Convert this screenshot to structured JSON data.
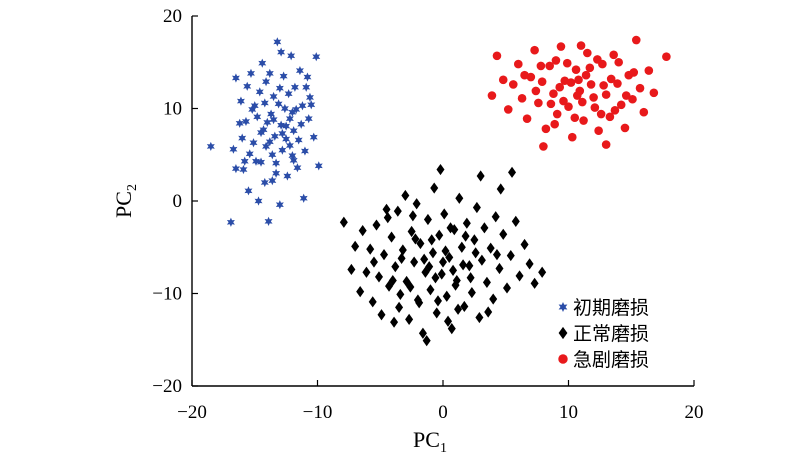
{
  "chart_data": {
    "type": "scatter",
    "title": "",
    "xlabel": "PC",
    "xlabel_subscript": "1",
    "ylabel": "PC",
    "ylabel_subscript": "2",
    "xlim": [
      -20,
      20
    ],
    "ylim": [
      -20,
      20
    ],
    "xticks": [
      -20,
      -10,
      0,
      10,
      20
    ],
    "yticks": [
      -20,
      -10,
      0,
      10,
      20
    ],
    "xtick_labels": [
      "−20",
      "−10",
      "0",
      "10",
      "20"
    ],
    "ytick_labels": [
      "−20",
      "−10",
      "0",
      "10",
      "20"
    ],
    "grid": false,
    "legend_position": "bottom-right",
    "series": [
      {
        "name": "初期磨损",
        "marker": "star",
        "color": "#2b4da8",
        "points": [
          [
            -18.5,
            5.9
          ],
          [
            -16.9,
            -2.3
          ],
          [
            -16.7,
            5.6
          ],
          [
            -16.5,
            13.3
          ],
          [
            -16.5,
            3.5
          ],
          [
            -16.2,
            8.4
          ],
          [
            -16.1,
            10.8
          ],
          [
            -16.0,
            6.8
          ],
          [
            -15.9,
            3.4
          ],
          [
            -15.8,
            4.3
          ],
          [
            -15.7,
            8.6
          ],
          [
            -15.5,
            1.1
          ],
          [
            -15.3,
            13.8
          ],
          [
            -15.2,
            9.9
          ],
          [
            -15.1,
            6.3
          ],
          [
            -15.0,
            10.3
          ],
          [
            -14.9,
            4.3
          ],
          [
            -14.7,
            0.0
          ],
          [
            -14.6,
            11.8
          ],
          [
            -14.5,
            4.2
          ],
          [
            -14.4,
            14.9
          ],
          [
            -14.3,
            7.7
          ],
          [
            -14.2,
            2.0
          ],
          [
            -14.1,
            12.9
          ],
          [
            -14.0,
            8.5
          ],
          [
            -13.9,
            -2.2
          ],
          [
            -13.8,
            6.4
          ],
          [
            -13.7,
            9.4
          ],
          [
            -13.6,
            2.2
          ],
          [
            -13.5,
            11.3
          ],
          [
            -13.4,
            7.0
          ],
          [
            -13.3,
            4.1
          ],
          [
            -13.2,
            17.2
          ],
          [
            -13.1,
            10.5
          ],
          [
            -13.0,
            -0.4
          ],
          [
            -12.9,
            8.2
          ],
          [
            -12.8,
            5.5
          ],
          [
            -12.7,
            13.5
          ],
          [
            -12.6,
            10.0
          ],
          [
            -12.5,
            6.7
          ],
          [
            -12.4,
            2.7
          ],
          [
            -12.3,
            11.6
          ],
          [
            -12.2,
            8.9
          ],
          [
            -12.1,
            15.7
          ],
          [
            -12.0,
            4.9
          ],
          [
            -11.9,
            7.6
          ],
          [
            -11.8,
            12.3
          ],
          [
            -11.7,
            9.9
          ],
          [
            -11.6,
            3.6
          ],
          [
            -11.5,
            6.6
          ],
          [
            -11.4,
            14.1
          ],
          [
            -11.3,
            8.3
          ],
          [
            -11.2,
            10.3
          ],
          [
            -11.1,
            0.3
          ],
          [
            -11.0,
            5.4
          ],
          [
            -10.9,
            12.3
          ],
          [
            -10.7,
            8.9
          ],
          [
            -10.5,
            10.4
          ],
          [
            -10.3,
            6.9
          ],
          [
            -10.1,
            15.6
          ],
          [
            -10.8,
            13.4
          ],
          [
            -9.9,
            3.8
          ],
          [
            -10.6,
            11.2
          ],
          [
            -15.4,
            5.1
          ],
          [
            -14.8,
            9.1
          ],
          [
            -14.2,
            10.6
          ],
          [
            -13.6,
            5.0
          ],
          [
            -13.0,
            12.2
          ],
          [
            -12.5,
            8.1
          ],
          [
            -12.0,
            9.6
          ],
          [
            -14.5,
            7.4
          ],
          [
            -13.8,
            13.8
          ],
          [
            -13.3,
            3.0
          ],
          [
            -12.8,
            7.3
          ],
          [
            -11.9,
            4.4
          ],
          [
            -15.6,
            12.4
          ],
          [
            -13.5,
            8.8
          ],
          [
            -12.9,
            16.1
          ],
          [
            -14.1,
            5.9
          ],
          [
            -12.2,
            6.0
          ]
        ]
      },
      {
        "name": "正常磨损",
        "marker": "diamond",
        "color": "#000000",
        "points": [
          [
            -7.9,
            -2.3
          ],
          [
            -7.3,
            -7.4
          ],
          [
            -7.0,
            -4.9
          ],
          [
            -6.6,
            -9.8
          ],
          [
            -6.4,
            -3.2
          ],
          [
            -6.1,
            -7.7
          ],
          [
            -5.8,
            -5.2
          ],
          [
            -5.6,
            -10.9
          ],
          [
            -5.3,
            -2.6
          ],
          [
            -5.1,
            -8.2
          ],
          [
            -4.9,
            -12.3
          ],
          [
            -4.7,
            -5.8
          ],
          [
            -4.5,
            -0.9
          ],
          [
            -4.3,
            -9.2
          ],
          [
            -4.1,
            -3.9
          ],
          [
            -3.9,
            -13.1
          ],
          [
            -3.8,
            -7.1
          ],
          [
            -3.6,
            -1.1
          ],
          [
            -3.4,
            -10.1
          ],
          [
            -3.2,
            -5.3
          ],
          [
            -3.0,
            0.6
          ],
          [
            -2.9,
            -8.7
          ],
          [
            -2.7,
            -12.8
          ],
          [
            -2.5,
            -3.3
          ],
          [
            -2.3,
            -6.6
          ],
          [
            -2.1,
            -0.3
          ],
          [
            -2.0,
            -10.7
          ],
          [
            -1.8,
            -4.6
          ],
          [
            -1.6,
            -14.3
          ],
          [
            -1.4,
            -7.7
          ],
          [
            -1.2,
            -2.0
          ],
          [
            -1.0,
            -9.6
          ],
          [
            -0.8,
            -5.6
          ],
          [
            -0.7,
            1.4
          ],
          [
            -0.5,
            -12.1
          ],
          [
            -0.3,
            -3.7
          ],
          [
            -0.1,
            -7.9
          ],
          [
            0.1,
            -1.4
          ],
          [
            0.3,
            -10.3
          ],
          [
            0.5,
            -6.1
          ],
          [
            0.7,
            -13.8
          ],
          [
            0.9,
            -3.1
          ],
          [
            1.1,
            -8.6
          ],
          [
            1.3,
            0.3
          ],
          [
            1.5,
            -5.0
          ],
          [
            1.7,
            -11.4
          ],
          [
            1.9,
            -2.4
          ],
          [
            2.1,
            -7.0
          ],
          [
            2.3,
            -9.9
          ],
          [
            2.5,
            -4.2
          ],
          [
            2.7,
            -0.7
          ],
          [
            2.9,
            -12.6
          ],
          [
            3.1,
            -6.4
          ],
          [
            3.3,
            -2.9
          ],
          [
            3.5,
            -8.8
          ],
          [
            3.8,
            -5.1
          ],
          [
            4.0,
            -10.6
          ],
          [
            4.2,
            -1.7
          ],
          [
            4.5,
            -7.3
          ],
          [
            4.8,
            -3.6
          ],
          [
            5.1,
            -9.4
          ],
          [
            5.4,
            -5.9
          ],
          [
            5.8,
            -2.2
          ],
          [
            6.1,
            -8.1
          ],
          [
            6.5,
            -4.7
          ],
          [
            6.9,
            -6.8
          ],
          [
            7.3,
            -8.9
          ],
          [
            7.9,
            -7.7
          ],
          [
            -1.3,
            -15.1
          ],
          [
            0.4,
            -13.0
          ],
          [
            -0.2,
            3.4
          ],
          [
            3.0,
            2.7
          ],
          [
            4.6,
            1.3
          ],
          [
            5.5,
            3.1
          ],
          [
            -2.2,
            -4.1
          ],
          [
            -1.5,
            -6.3
          ],
          [
            -0.6,
            -8.3
          ],
          [
            0.2,
            -5.4
          ],
          [
            1.0,
            -9.1
          ],
          [
            1.6,
            -6.9
          ],
          [
            -2.6,
            -9.3
          ],
          [
            -1.9,
            -11.0
          ],
          [
            -0.9,
            -4.2
          ],
          [
            0.6,
            -2.9
          ],
          [
            1.2,
            -11.7
          ],
          [
            2.2,
            -8.3
          ],
          [
            -3.3,
            -6.2
          ],
          [
            -4.0,
            -8.6
          ],
          [
            -0.4,
            -10.8
          ],
          [
            2.6,
            -5.6
          ],
          [
            -1.1,
            -7.1
          ],
          [
            0.0,
            -6.6
          ],
          [
            0.8,
            -7.5
          ],
          [
            -2.4,
            -1.6
          ],
          [
            1.8,
            -3.8
          ],
          [
            -3.5,
            -11.5
          ],
          [
            -5.5,
            -6.6
          ],
          [
            3.6,
            -12.0
          ],
          [
            4.3,
            -5.8
          ],
          [
            -4.4,
            -1.8
          ]
        ]
      },
      {
        "name": "急剧磨损",
        "marker": "circle",
        "color": "#e8191b",
        "points": [
          [
            3.9,
            11.4
          ],
          [
            4.3,
            15.7
          ],
          [
            4.8,
            13.1
          ],
          [
            5.2,
            9.9
          ],
          [
            5.6,
            12.6
          ],
          [
            6.0,
            14.8
          ],
          [
            6.3,
            11.1
          ],
          [
            6.7,
            8.9
          ],
          [
            7.0,
            13.4
          ],
          [
            7.3,
            16.3
          ],
          [
            7.6,
            10.6
          ],
          [
            7.9,
            12.9
          ],
          [
            8.2,
            7.8
          ],
          [
            8.5,
            14.6
          ],
          [
            8.8,
            11.6
          ],
          [
            9.1,
            9.4
          ],
          [
            9.4,
            16.7
          ],
          [
            9.7,
            13.0
          ],
          [
            10.0,
            10.2
          ],
          [
            10.3,
            6.9
          ],
          [
            10.6,
            14.2
          ],
          [
            10.9,
            11.9
          ],
          [
            11.2,
            8.7
          ],
          [
            11.5,
            16.0
          ],
          [
            11.8,
            12.6
          ],
          [
            12.1,
            10.1
          ],
          [
            12.4,
            7.6
          ],
          [
            12.7,
            14.8
          ],
          [
            13.0,
            11.5
          ],
          [
            13.3,
            9.1
          ],
          [
            13.6,
            15.8
          ],
          [
            13.9,
            12.7
          ],
          [
            14.2,
            10.4
          ],
          [
            14.5,
            7.9
          ],
          [
            14.8,
            13.6
          ],
          [
            15.1,
            11.0
          ],
          [
            15.4,
            17.4
          ],
          [
            15.7,
            12.2
          ],
          [
            16.0,
            9.6
          ],
          [
            16.4,
            14.1
          ],
          [
            16.8,
            11.7
          ],
          [
            17.8,
            15.6
          ],
          [
            8.0,
            5.9
          ],
          [
            13.0,
            6.1
          ],
          [
            9.3,
            12.3
          ],
          [
            10.8,
            13.1
          ],
          [
            12.0,
            11.2
          ],
          [
            11.1,
            10.7
          ],
          [
            10.2,
            12.8
          ],
          [
            12.8,
            12.5
          ],
          [
            9.9,
            14.9
          ],
          [
            11.7,
            14.4
          ],
          [
            8.6,
            10.5
          ],
          [
            13.7,
            9.8
          ],
          [
            7.4,
            11.9
          ],
          [
            14.6,
            11.4
          ],
          [
            10.5,
            9.0
          ],
          [
            12.3,
            15.3
          ],
          [
            9.0,
            15.2
          ],
          [
            11.4,
            13.6
          ],
          [
            6.5,
            13.6
          ],
          [
            15.2,
            13.9
          ],
          [
            8.9,
            8.3
          ],
          [
            13.4,
            13.2
          ],
          [
            10.7,
            11.4
          ],
          [
            12.6,
            9.4
          ],
          [
            7.8,
            14.6
          ],
          [
            14.0,
            15.0
          ],
          [
            11.0,
            16.8
          ],
          [
            9.6,
            10.8
          ]
        ]
      }
    ]
  }
}
